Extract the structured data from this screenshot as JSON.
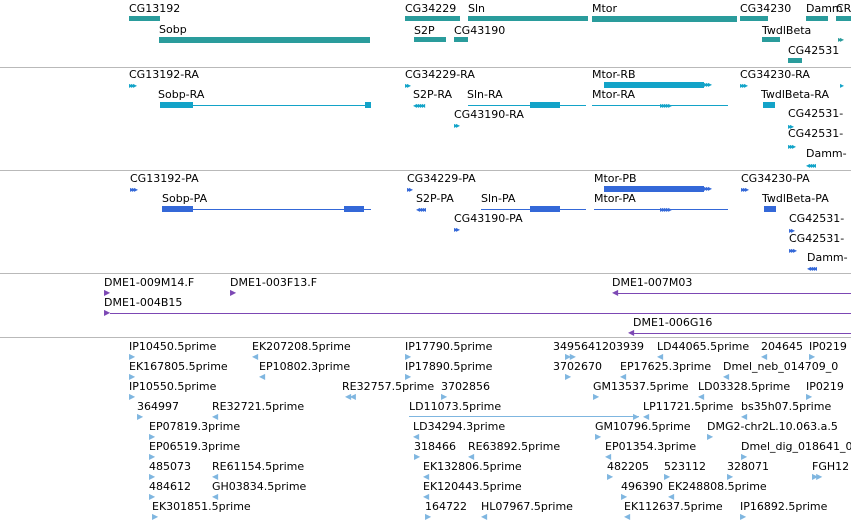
{
  "colors": {
    "gene": "#2a9c9c",
    "transcript": "#13a3c8",
    "protein": "#3468d8",
    "clone": "#7c48b4",
    "est": "#7fb6e0",
    "separator": "#b9b9b9"
  },
  "genes": {
    "labels": [
      "CG13192",
      "Sobp",
      "CG34229",
      "S2P",
      "Sln",
      "CG43190",
      "Mtor",
      "CG34230",
      "TwdlBeta",
      "CG42531",
      "Damm",
      "CR"
    ]
  },
  "transcripts": {
    "labels": [
      "CG13192-RA",
      "Sobp-RA",
      "CG34229-RA",
      "S2P-RA",
      "Sln-RA",
      "CG43190-RA",
      "Mtor-RB",
      "Mtor-RA",
      "CG34230-RA",
      "TwdlBeta-RA",
      "CG42531-",
      "CG42531-",
      "Damm-"
    ]
  },
  "proteins": {
    "labels": [
      "CG13192-PA",
      "Sobp-PA",
      "CG34229-PA",
      "S2P-PA",
      "Sln-PA",
      "CG43190-PA",
      "Mtor-PB",
      "Mtor-PA",
      "CG34230-PA",
      "TwdlBeta-PA",
      "CG42531-",
      "CG42531-",
      "Damm-"
    ]
  },
  "clones": {
    "labels": [
      "DME1-009M14.F",
      "DME1-003F13.F",
      "DME1-004B15",
      "DME1-007M03",
      "DME1-006G16"
    ]
  },
  "ests": {
    "labels": [
      "IP10450.5prime",
      "EK207208.5prime",
      "IP17790.5prime",
      "3495641203939",
      "LD44065.5prime",
      "204645",
      "IP0219",
      "EK167805.5prime",
      "EP10802.3prime",
      "IP17890.5prime",
      "3702670",
      "EP17625.3prime",
      "Dmel_neb_014709_0",
      "IP10550.5prime",
      "RE32757.5prime",
      "3702856",
      "GM13537.5prime",
      "LD03328.5prime",
      "IP0219",
      "364997",
      "RE32721.5prime",
      "LD11073.5prime",
      "LP11721.5prime",
      "bs35h07.5prime",
      "EP07819.3prime",
      "LD34294.3prime",
      "GM10796.5prime",
      "DMG2-chr2L.10.063.a.5",
      "EP06519.3prime",
      "318466",
      "RE63892.5prime",
      "EP01354.3prime",
      "Dmel_dig_018641_0",
      "485073",
      "RE61154.5prime",
      "EK132806.5prime",
      "482205",
      "523112",
      "328071",
      "FGH12",
      "484612",
      "GH03834.5prime",
      "EK120443.5prime",
      "496390",
      "EK248808.5prime",
      "EK301851.5prime",
      "164722",
      "HL07967.5prime",
      "EK112637.5prime",
      "IP16892.5prime"
    ]
  }
}
